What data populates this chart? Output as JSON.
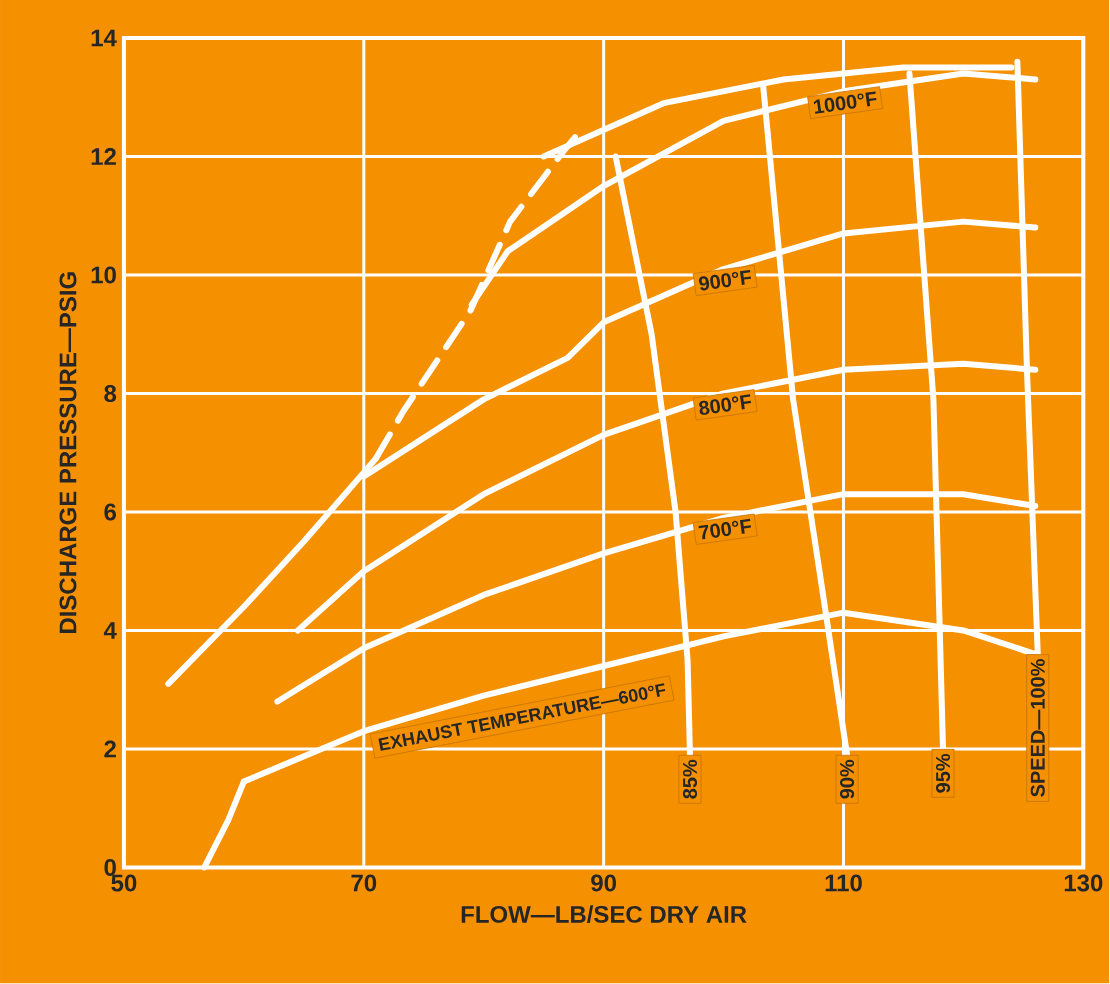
{
  "chart_data": {
    "type": "line",
    "xlabel": "FLOW—LB/SEC DRY AIR",
    "ylabel": "DISCHARGE PRESSURE—PSIG",
    "xlim": [
      50,
      130
    ],
    "xticks": [
      50,
      70,
      90,
      110,
      130
    ],
    "ylim": [
      0,
      14
    ],
    "yticks": [
      0,
      2,
      4,
      6,
      8,
      10,
      12,
      14
    ],
    "grid": true,
    "series": [
      {
        "name": "EXHAUST TEMPERATURE—600°F",
        "color": "#ffffff",
        "x": [
          60,
          70,
          80,
          90,
          100,
          110,
          120,
          126
        ],
        "values": [
          1.45,
          2.3,
          2.9,
          3.4,
          3.9,
          4.3,
          4.0,
          3.6
        ]
      },
      {
        "name": "700°F",
        "color": "#ffffff",
        "x": [
          62.8,
          70,
          80,
          90,
          100,
          110,
          120,
          126
        ],
        "values": [
          2.8,
          3.7,
          4.6,
          5.3,
          5.9,
          6.3,
          6.3,
          6.1
        ]
      },
      {
        "name": "800°F",
        "color": "#ffffff",
        "x": [
          64.5,
          70,
          80,
          90,
          100,
          110,
          120,
          126
        ],
        "values": [
          4.0,
          5.0,
          6.3,
          7.3,
          8.0,
          8.4,
          8.5,
          8.4
        ]
      },
      {
        "name": "900°F",
        "color": "#ffffff",
        "x": [
          70,
          80,
          87,
          90,
          100,
          110,
          120,
          126
        ],
        "values": [
          6.6,
          7.9,
          8.6,
          9.2,
          10.1,
          10.7,
          10.9,
          10.8
        ]
      },
      {
        "name": "1000°F",
        "color": "#ffffff",
        "x": [
          79,
          82,
          90,
          100,
          110,
          120,
          126
        ],
        "values": [
          9.5,
          10.4,
          11.5,
          12.6,
          13.1,
          13.4,
          13.3
        ]
      },
      {
        "color": "#ffffff",
        "x": [
          85,
          95,
          105,
          115,
          124
        ],
        "values": [
          12.0,
          12.9,
          13.3,
          13.5,
          13.5
        ]
      },
      {
        "name": "85%",
        "color": "#ffffff",
        "x": [
          91,
          94,
          96,
          97,
          97.2
        ],
        "values": [
          12.0,
          9.0,
          6.0,
          3.5,
          1.9
        ]
      },
      {
        "name": "90%",
        "color": "#ffffff",
        "x": [
          103.3,
          105.8,
          108,
          110.3
        ],
        "values": [
          13.2,
          7.9,
          5.0,
          1.9
        ]
      },
      {
        "name": "95%",
        "color": "#ffffff",
        "x": [
          115.5,
          117.5,
          118.3
        ],
        "values": [
          13.4,
          7.9,
          2.0
        ]
      },
      {
        "name": "SPEED—100%",
        "color": "#ffffff",
        "x": [
          124.5,
          125.3,
          126.2
        ],
        "values": [
          13.6,
          8.4,
          3.6
        ]
      },
      {
        "color": "#ffffff",
        "x": [
          56.7,
          58.7,
          60
        ],
        "values": [
          0,
          0.8,
          1.45
        ]
      },
      {
        "color": "#ffffff",
        "x": [
          53.7,
          60,
          65,
          71
        ],
        "values": [
          3.1,
          4.4,
          5.5,
          6.9
        ]
      },
      {
        "color": "#ffffff",
        "line_style": "dashed",
        "x": [
          71,
          73.3,
          78.9,
          82.2,
          86.7,
          88.3
        ],
        "values": [
          6.9,
          7.7,
          9.4,
          10.9,
          12.1,
          12.5
        ]
      }
    ]
  }
}
